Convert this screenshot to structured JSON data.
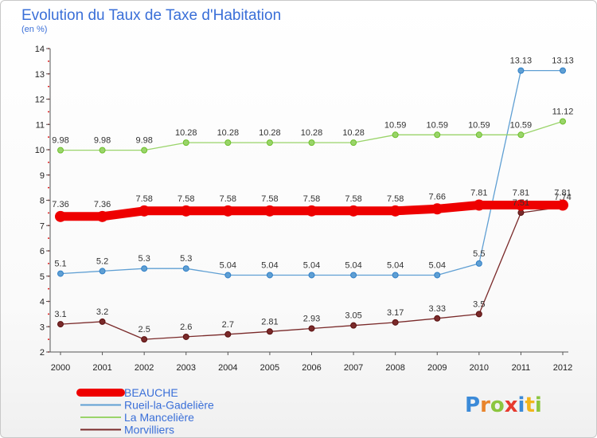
{
  "chart_data": {
    "type": "line",
    "title": "Evolution du Taux de Taxe d'Habitation",
    "subtitle": "(en %)",
    "x": [
      "2000",
      "2001",
      "2002",
      "2003",
      "2004",
      "2005",
      "2006",
      "2007",
      "2008",
      "2009",
      "2010",
      "2011",
      "2012"
    ],
    "ylim": [
      2,
      14
    ],
    "yticks": [
      2,
      3,
      4,
      5,
      6,
      7,
      8,
      9,
      10,
      11,
      12,
      13,
      14
    ],
    "grid": false,
    "legend_position": "bottom-left",
    "series": [
      {
        "name": "BEAUCHE",
        "color": "#ee0000",
        "thick": true,
        "values": [
          7.36,
          7.36,
          7.58,
          7.58,
          7.58,
          7.58,
          7.58,
          7.58,
          7.58,
          7.66,
          7.81,
          7.81,
          7.81
        ],
        "labels": [
          "7.36",
          "7.36",
          "7.58",
          "7.58",
          "7.58",
          "7.58",
          "7.58",
          "7.58",
          "7.58",
          "7.66",
          "7.81",
          "7.81",
          "7.81"
        ]
      },
      {
        "name": "Rueil-la-Gadelière",
        "color": "#5f9fd3",
        "dot": "#2f7fc8",
        "values": [
          5.1,
          5.2,
          5.3,
          5.3,
          5.04,
          5.04,
          5.04,
          5.04,
          5.04,
          5.04,
          5.5,
          13.13,
          13.13
        ],
        "labels": [
          "5.1",
          "5.2",
          "5.3",
          "5.3",
          "5.04",
          "5.04",
          "5.04",
          "5.04",
          "5.04",
          "5.04",
          "5.5",
          "13.13",
          "13.13"
        ]
      },
      {
        "name": "La Mancelière",
        "color": "#9ad46a",
        "dot": "#6cc02a",
        "values": [
          9.98,
          9.98,
          9.98,
          10.28,
          10.28,
          10.28,
          10.28,
          10.28,
          10.59,
          10.59,
          10.59,
          10.59,
          11.12
        ],
        "labels": [
          "9.98",
          "9.98",
          "9.98",
          "10.28",
          "10.28",
          "10.28",
          "10.28",
          "10.28",
          "10.59",
          "10.59",
          "10.59",
          "10.59",
          "11.12"
        ]
      },
      {
        "name": "Morvilliers",
        "color": "#7a2a2a",
        "dot": "#5a1010",
        "values": [
          3.1,
          3.2,
          2.5,
          2.6,
          2.7,
          2.81,
          2.93,
          3.05,
          3.17,
          3.33,
          3.5,
          7.51,
          7.74
        ],
        "labels": [
          "3.1",
          "3.2",
          "2.5",
          "2.6",
          "2.7",
          "2.81",
          "2.93",
          "3.05",
          "3.17",
          "3.33",
          "3.5",
          "7.51",
          "7.74"
        ]
      }
    ]
  },
  "logo": {
    "text": "Proxiti",
    "letter_colors": [
      "#3b8ad8",
      "#e8842c",
      "#8cc63f",
      "#e63a2e",
      "#3b8ad8",
      "#f2b51c",
      "#8cc63f"
    ]
  }
}
